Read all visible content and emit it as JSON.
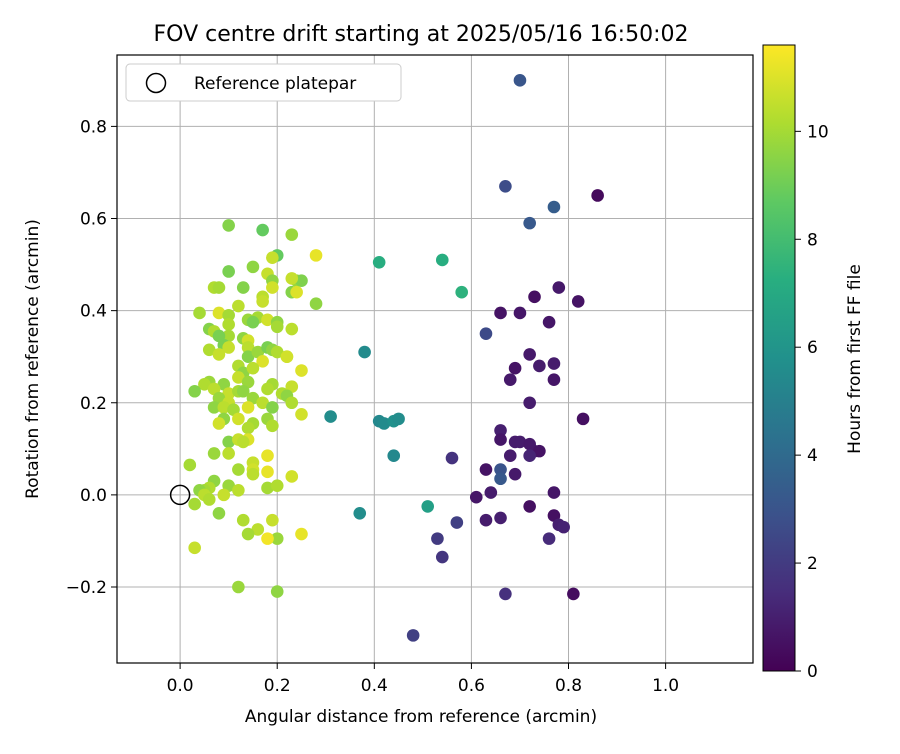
{
  "chart_data": {
    "type": "scatter",
    "title": "FOV centre drift starting at 2025/05/16 16:50:02",
    "xlabel": "Angular distance from reference (arcmin)",
    "ylabel": "Rotation from reference (arcmin)",
    "xlim": [
      -0.13,
      1.18
    ],
    "ylim": [
      -0.365,
      0.955
    ],
    "xticks": [
      "0.0",
      "0.2",
      "0.4",
      "0.6",
      "0.8",
      "1.0"
    ],
    "yticks": [
      "−0.2",
      "0.0",
      "0.2",
      "0.4",
      "0.6",
      "0.8"
    ],
    "grid": true,
    "legend": {
      "position": "top-left",
      "entries": [
        "Reference platepar"
      ]
    },
    "reference_point": {
      "x": 0.0,
      "y": 0.0
    },
    "colorbar": {
      "label": "Hours from first FF file",
      "colormap": "viridis",
      "range": [
        0,
        11.6
      ],
      "ticks": [
        "0",
        "2",
        "4",
        "6",
        "8",
        "10"
      ]
    },
    "points": [
      [
        0.7,
        0.9,
        3.1
      ],
      [
        0.67,
        0.67,
        2.7
      ],
      [
        0.77,
        0.625,
        3.4
      ],
      [
        0.72,
        0.59,
        3.2
      ],
      [
        0.86,
        0.65,
        0.3
      ],
      [
        0.78,
        0.45,
        0.8
      ],
      [
        0.73,
        0.43,
        0.5
      ],
      [
        0.82,
        0.42,
        0.6
      ],
      [
        0.66,
        0.395,
        0.6
      ],
      [
        0.7,
        0.395,
        0.7
      ],
      [
        0.76,
        0.375,
        0.7
      ],
      [
        0.63,
        0.35,
        2.6
      ],
      [
        0.72,
        0.305,
        0.8
      ],
      [
        0.69,
        0.275,
        0.6
      ],
      [
        0.74,
        0.28,
        0.9
      ],
      [
        0.77,
        0.285,
        0.9
      ],
      [
        0.68,
        0.25,
        0.8
      ],
      [
        0.77,
        0.25,
        0.7
      ],
      [
        0.72,
        0.2,
        0.9
      ],
      [
        0.83,
        0.165,
        0.5
      ],
      [
        0.66,
        0.14,
        1.0
      ],
      [
        0.66,
        0.12,
        0.7
      ],
      [
        0.69,
        0.115,
        0.9
      ],
      [
        0.7,
        0.115,
        0.9
      ],
      [
        0.72,
        0.11,
        0.8
      ],
      [
        0.73,
        0.095,
        0.8
      ],
      [
        0.74,
        0.095,
        0.6
      ],
      [
        0.68,
        0.085,
        0.9
      ],
      [
        0.72,
        0.085,
        1.2
      ],
      [
        0.63,
        0.055,
        0.6
      ],
      [
        0.66,
        0.055,
        3.0
      ],
      [
        0.66,
        0.035,
        3.2
      ],
      [
        0.69,
        0.045,
        0.8
      ],
      [
        0.64,
        0.005,
        0.9
      ],
      [
        0.61,
        -0.005,
        0.7
      ],
      [
        0.77,
        0.005,
        0.7
      ],
      [
        0.72,
        -0.025,
        0.5
      ],
      [
        0.77,
        -0.045,
        0.5
      ],
      [
        0.63,
        -0.055,
        0.9
      ],
      [
        0.66,
        -0.05,
        1.0
      ],
      [
        0.78,
        -0.065,
        1.0
      ],
      [
        0.79,
        -0.07,
        1.1
      ],
      [
        0.76,
        -0.095,
        1.4
      ],
      [
        0.67,
        -0.215,
        1.6
      ],
      [
        0.81,
        -0.215,
        0.4
      ],
      [
        0.56,
        0.08,
        1.7
      ],
      [
        0.57,
        -0.06,
        2.2
      ],
      [
        0.53,
        -0.095,
        2.0
      ],
      [
        0.54,
        -0.135,
        1.8
      ],
      [
        0.48,
        -0.305,
        2.2
      ],
      [
        0.41,
        0.505,
        7.2
      ],
      [
        0.54,
        0.51,
        7.2
      ],
      [
        0.58,
        0.44,
        7.4
      ],
      [
        0.38,
        0.31,
        5.5
      ],
      [
        0.31,
        0.17,
        5.6
      ],
      [
        0.41,
        0.16,
        5.4
      ],
      [
        0.42,
        0.155,
        5.5
      ],
      [
        0.44,
        0.16,
        5.8
      ],
      [
        0.45,
        0.165,
        5.6
      ],
      [
        0.44,
        0.085,
        5.4
      ],
      [
        0.51,
        -0.025,
        6.5
      ],
      [
        0.37,
        -0.04,
        5.6
      ],
      [
        0.1,
        0.585,
        9.4
      ],
      [
        0.17,
        0.575,
        8.8
      ],
      [
        0.2,
        0.52,
        8.8
      ],
      [
        0.23,
        0.565,
        9.8
      ],
      [
        0.28,
        0.52,
        11.2
      ],
      [
        0.19,
        0.515,
        10.6
      ],
      [
        0.1,
        0.485,
        9.2
      ],
      [
        0.15,
        0.495,
        9.6
      ],
      [
        0.18,
        0.48,
        10.6
      ],
      [
        0.07,
        0.45,
        10.2
      ],
      [
        0.08,
        0.45,
        10.0
      ],
      [
        0.13,
        0.45,
        9.4
      ],
      [
        0.19,
        0.465,
        9.6
      ],
      [
        0.24,
        0.465,
        9.8
      ],
      [
        0.25,
        0.465,
        9.3
      ],
      [
        0.23,
        0.47,
        10.6
      ],
      [
        0.17,
        0.43,
        10.4
      ],
      [
        0.19,
        0.45,
        10.8
      ],
      [
        0.23,
        0.44,
        9.4
      ],
      [
        0.24,
        0.44,
        11.0
      ],
      [
        0.04,
        0.395,
        10.0
      ],
      [
        0.08,
        0.395,
        11.0
      ],
      [
        0.1,
        0.39,
        10.0
      ],
      [
        0.12,
        0.41,
        10.4
      ],
      [
        0.17,
        0.42,
        10.6
      ],
      [
        0.28,
        0.415,
        9.6
      ],
      [
        0.14,
        0.38,
        9.8
      ],
      [
        0.16,
        0.385,
        10.0
      ],
      [
        0.06,
        0.36,
        9.4
      ],
      [
        0.1,
        0.37,
        10.2
      ],
      [
        0.15,
        0.375,
        9.2
      ],
      [
        0.18,
        0.38,
        10.8
      ],
      [
        0.2,
        0.375,
        9.6
      ],
      [
        0.2,
        0.365,
        10.0
      ],
      [
        0.23,
        0.36,
        10.4
      ],
      [
        0.07,
        0.355,
        10.2
      ],
      [
        0.1,
        0.345,
        10.0
      ],
      [
        0.08,
        0.345,
        9.2
      ],
      [
        0.13,
        0.34,
        9.6
      ],
      [
        0.14,
        0.335,
        10.8
      ],
      [
        0.09,
        0.325,
        9.2
      ],
      [
        0.1,
        0.32,
        10.6
      ],
      [
        0.14,
        0.32,
        10.4
      ],
      [
        0.06,
        0.315,
        10.2
      ],
      [
        0.08,
        0.305,
        10.6
      ],
      [
        0.14,
        0.3,
        9.4
      ],
      [
        0.16,
        0.31,
        9.8
      ],
      [
        0.18,
        0.32,
        9.2
      ],
      [
        0.19,
        0.315,
        9.6
      ],
      [
        0.2,
        0.31,
        10.2
      ],
      [
        0.22,
        0.3,
        10.4
      ],
      [
        0.17,
        0.29,
        11.0
      ],
      [
        0.22,
        0.3,
        10.8
      ],
      [
        0.12,
        0.28,
        10.2
      ],
      [
        0.13,
        0.265,
        9.6
      ],
      [
        0.15,
        0.275,
        10.4
      ],
      [
        0.25,
        0.27,
        11.0
      ],
      [
        0.12,
        0.255,
        10.6
      ],
      [
        0.14,
        0.245,
        9.8
      ],
      [
        0.06,
        0.245,
        9.8
      ],
      [
        0.05,
        0.24,
        10.2
      ],
      [
        0.03,
        0.225,
        9.4
      ],
      [
        0.09,
        0.24,
        9.6
      ],
      [
        0.07,
        0.23,
        10.4
      ],
      [
        0.1,
        0.22,
        10.6
      ],
      [
        0.12,
        0.225,
        10.0
      ],
      [
        0.13,
        0.225,
        9.6
      ],
      [
        0.19,
        0.24,
        10.0
      ],
      [
        0.18,
        0.23,
        10.2
      ],
      [
        0.21,
        0.22,
        10.2
      ],
      [
        0.23,
        0.235,
        10.6
      ],
      [
        0.22,
        0.215,
        9.6
      ],
      [
        0.08,
        0.21,
        9.8
      ],
      [
        0.1,
        0.2,
        10.6
      ],
      [
        0.15,
        0.21,
        9.8
      ],
      [
        0.17,
        0.2,
        10.4
      ],
      [
        0.23,
        0.2,
        10.2
      ],
      [
        0.07,
        0.19,
        9.6
      ],
      [
        0.09,
        0.19,
        10.4
      ],
      [
        0.11,
        0.185,
        10.0
      ],
      [
        0.14,
        0.19,
        11.0
      ],
      [
        0.19,
        0.19,
        9.4
      ],
      [
        0.25,
        0.175,
        10.8
      ],
      [
        0.09,
        0.165,
        9.6
      ],
      [
        0.12,
        0.165,
        10.8
      ],
      [
        0.18,
        0.165,
        9.8
      ],
      [
        0.08,
        0.155,
        10.8
      ],
      [
        0.15,
        0.155,
        10.0
      ],
      [
        0.14,
        0.145,
        10.2
      ],
      [
        0.19,
        0.15,
        10.2
      ],
      [
        0.1,
        0.115,
        9.4
      ],
      [
        0.12,
        0.12,
        10.6
      ],
      [
        0.14,
        0.12,
        11.0
      ],
      [
        0.13,
        0.115,
        10.4
      ],
      [
        0.07,
        0.09,
        9.8
      ],
      [
        0.1,
        0.09,
        10.4
      ],
      [
        0.18,
        0.085,
        11.2
      ],
      [
        0.02,
        0.065,
        10.0
      ],
      [
        0.15,
        0.07,
        10.6
      ],
      [
        0.12,
        0.055,
        10.0
      ],
      [
        0.15,
        0.055,
        10.8
      ],
      [
        0.15,
        0.045,
        10.4
      ],
      [
        0.18,
        0.05,
        11.2
      ],
      [
        0.23,
        0.04,
        10.8
      ],
      [
        0.07,
        0.03,
        9.6
      ],
      [
        0.1,
        0.02,
        9.8
      ],
      [
        0.06,
        0.015,
        10.2
      ],
      [
        0.05,
        0.01,
        10.0
      ],
      [
        0.04,
        0.01,
        9.6
      ],
      [
        0.05,
        0.0,
        10.4
      ],
      [
        0.09,
        0.0,
        10.6
      ],
      [
        0.12,
        0.01,
        10.4
      ],
      [
        0.18,
        0.015,
        10.0
      ],
      [
        0.2,
        0.02,
        10.2
      ],
      [
        0.06,
        -0.01,
        10.2
      ],
      [
        0.03,
        -0.02,
        10.0
      ],
      [
        0.08,
        -0.04,
        9.6
      ],
      [
        0.13,
        -0.055,
        10.2
      ],
      [
        0.19,
        -0.055,
        10.6
      ],
      [
        0.16,
        -0.075,
        10.4
      ],
      [
        0.14,
        -0.085,
        10.0
      ],
      [
        0.2,
        -0.095,
        9.8
      ],
      [
        0.18,
        -0.095,
        11.4
      ],
      [
        0.25,
        -0.085,
        11.2
      ],
      [
        0.03,
        -0.115,
        10.6
      ],
      [
        0.12,
        -0.2,
        9.8
      ],
      [
        0.2,
        -0.21,
        9.6
      ]
    ]
  }
}
